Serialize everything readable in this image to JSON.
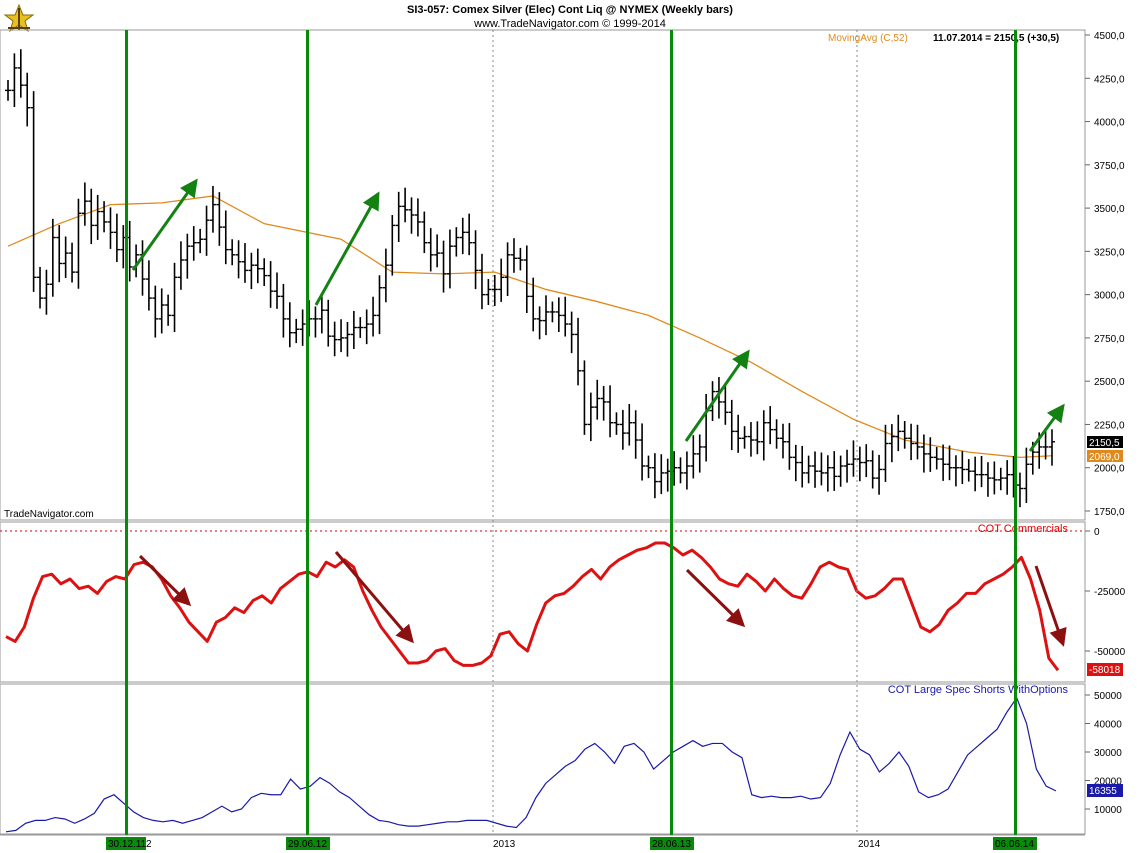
{
  "header": {
    "title": "SI3-057:  Comex Silver (Elec) Cont Liq @ NYMEX  (Weekly bars)",
    "subtitle": "www.TradeNavigator.com © 1999-2014"
  },
  "watermark": "TradeNavigator.com",
  "colors": {
    "price_bars": "#000000",
    "moving_avg": "#e08a1e",
    "cot_commercials": "#dd1111",
    "cot_large_spec": "#1a1aa8",
    "vertical_markers": "#0a8a0a",
    "arrows_up": "#138213",
    "arrows_down": "#8b1010"
  },
  "chart_data": [
    {
      "type": "ohlc",
      "panel": "price",
      "title": "SI3-057:  Comex Silver (Elec) Cont Liq @ NYMEX  (Weekly bars)",
      "ylim": [
        1650,
        4500
      ],
      "yticks": [
        "4500,0",
        "4250,0",
        "4000,0",
        "3750,0",
        "3500,0",
        "3250,0",
        "3000,0",
        "2750,0",
        "2500,0",
        "2250,0",
        "2000,0",
        "1750,0"
      ],
      "ytick_values": [
        4500,
        4250,
        4000,
        3750,
        3500,
        3250,
        3000,
        2750,
        2500,
        2250,
        2000,
        1750
      ],
      "last_value_label": "2150,5",
      "ma_value_label": "2069,0",
      "legend_ma": "MovingAvg (C,52)",
      "legend_value": "11.07.2014 = 2150,5 (+30,5)",
      "closes": [
        4180,
        4310,
        4210,
        4080,
        3100,
        2980,
        3060,
        3330,
        3180,
        3240,
        3130,
        3470,
        3540,
        3400,
        3480,
        3420,
        3360,
        3260,
        3330,
        3160,
        3230,
        3090,
        2980,
        2860,
        2940,
        2880,
        3100,
        3200,
        3280,
        3300,
        3320,
        3430,
        3520,
        3390,
        3260,
        3230,
        3190,
        3140,
        3170,
        3150,
        3110,
        3020,
        2990,
        2860,
        2780,
        2800,
        2830,
        2860,
        2860,
        2910,
        2760,
        2740,
        2750,
        2770,
        2810,
        2810,
        2830,
        2880,
        3040,
        3170,
        3400,
        3510,
        3490,
        3460,
        3420,
        3300,
        3230,
        3240,
        3120,
        3280,
        3330,
        3360,
        3300,
        3140,
        3000,
        3030,
        3030,
        3100,
        3230,
        3210,
        3200,
        2990,
        2860,
        2850,
        2900,
        2900,
        2880,
        2830,
        2770,
        2560,
        2250,
        2350,
        2400,
        2380,
        2260,
        2250,
        2200,
        2260,
        2160,
        2010,
        2000,
        1920,
        1970,
        1980,
        2000,
        1970,
        2010,
        2080,
        2120,
        2330,
        2440,
        2380,
        2320,
        2210,
        2170,
        2180,
        2160,
        2150,
        2260,
        2220,
        2170,
        2150,
        2060,
        2030,
        1970,
        2010,
        1980,
        1970,
        2000,
        1950,
        2010,
        2020,
        2050,
        2030,
        2040,
        1940,
        1990,
        2140,
        2180,
        2210,
        2170,
        2140,
        2120,
        2080,
        2060,
        2050,
        2020,
        2000,
        2000,
        1990,
        1980,
        1960,
        1960,
        1940,
        1930,
        1940,
        1960,
        1900,
        1880,
        2020,
        2090,
        2120,
        2120,
        2150
      ],
      "moving_avg": [
        {
          "i": 0,
          "v": 3280
        },
        {
          "i": 8,
          "v": 3410
        },
        {
          "i": 16,
          "v": 3520
        },
        {
          "i": 24,
          "v": 3530
        },
        {
          "i": 32,
          "v": 3570
        },
        {
          "i": 40,
          "v": 3410
        },
        {
          "i": 52,
          "v": 3320
        },
        {
          "i": 60,
          "v": 3130
        },
        {
          "i": 68,
          "v": 3120
        },
        {
          "i": 76,
          "v": 3130
        },
        {
          "i": 84,
          "v": 3030
        },
        {
          "i": 92,
          "v": 2960
        },
        {
          "i": 100,
          "v": 2880
        },
        {
          "i": 108,
          "v": 2750
        },
        {
          "i": 116,
          "v": 2610
        },
        {
          "i": 124,
          "v": 2440
        },
        {
          "i": 132,
          "v": 2280
        },
        {
          "i": 140,
          "v": 2160
        },
        {
          "i": 150,
          "v": 2090
        },
        {
          "i": 158,
          "v": 2060
        },
        {
          "i": 163,
          "v": 2069
        }
      ]
    },
    {
      "type": "line",
      "panel": "cot_commercials",
      "series_name": "COT Commercials",
      "ylim": [
        -62000,
        2000
      ],
      "yticks": [
        "0",
        "-25000",
        "-50000"
      ],
      "ytick_values": [
        0,
        -25000,
        -50000
      ],
      "last_value_label": "-58018",
      "values": [
        -44000,
        -46000,
        -40000,
        -28000,
        -19000,
        -18000,
        -22000,
        -20000,
        -24000,
        -23000,
        -26000,
        -21000,
        -19000,
        -20000,
        -14000,
        -13000,
        -15000,
        -20000,
        -27000,
        -32000,
        -38000,
        -42000,
        -46000,
        -38000,
        -36000,
        -32000,
        -34000,
        -29000,
        -27000,
        -30000,
        -24000,
        -21000,
        -18000,
        -17000,
        -19000,
        -13000,
        -15000,
        -12000,
        -15000,
        -25000,
        -33000,
        -40000,
        -45000,
        -50000,
        -55000,
        -55000,
        -54000,
        -50000,
        -49000,
        -54000,
        -56000,
        -56000,
        -55000,
        -52000,
        -43000,
        -42000,
        -47000,
        -50000,
        -39000,
        -30000,
        -27000,
        -26000,
        -23000,
        -19000,
        -16000,
        -20000,
        -15000,
        -12000,
        -10000,
        -8000,
        -7000,
        -5000,
        -5000,
        -7000,
        -10000,
        -8000,
        -11000,
        -15000,
        -20000,
        -22000,
        -23000,
        -18000,
        -21000,
        -25000,
        -20000,
        -24000,
        -27000,
        -28000,
        -22000,
        -15000,
        -13000,
        -15000,
        -16000,
        -25000,
        -28000,
        -27000,
        -24000,
        -20000,
        -20000,
        -30000,
        -40000,
        -42000,
        -39000,
        -33000,
        -30000,
        -26000,
        -26000,
        -22000,
        -20000,
        -18000,
        -15000,
        -11000,
        -20000,
        -33000,
        -53000,
        -58018
      ]
    },
    {
      "type": "line",
      "panel": "cot_large_spec",
      "series_name": "COT Large Spec Shorts WithOptions",
      "ylim": [
        0,
        56000
      ],
      "yticks": [
        "50000",
        "40000",
        "30000",
        "20000",
        "10000"
      ],
      "ytick_values": [
        50000,
        40000,
        30000,
        20000,
        10000
      ],
      "last_value_label": "16355",
      "values": [
        2000,
        2500,
        5000,
        6000,
        6000,
        7000,
        6500,
        5000,
        6500,
        8500,
        13500,
        15000,
        12000,
        9000,
        7000,
        6000,
        5500,
        6000,
        5000,
        6000,
        7000,
        9000,
        11000,
        9000,
        10000,
        14000,
        15500,
        15000,
        15000,
        20500,
        17000,
        18000,
        21000,
        19000,
        16000,
        14000,
        11000,
        8000,
        6000,
        5500,
        4500,
        4000,
        4000,
        4500,
        5000,
        5500,
        5500,
        6000,
        6000,
        6000,
        5000,
        4000,
        3500,
        7000,
        14000,
        19000,
        22000,
        25000,
        27000,
        31000,
        33000,
        30000,
        26000,
        32000,
        33000,
        30000,
        24000,
        27000,
        30000,
        32000,
        34000,
        32000,
        33000,
        33000,
        30000,
        28000,
        15000,
        14000,
        14500,
        14000,
        14000,
        14500,
        13500,
        14000,
        19000,
        29000,
        37000,
        31000,
        29000,
        23000,
        26000,
        30000,
        25000,
        16000,
        14000,
        15000,
        17000,
        23000,
        29000,
        32000,
        35000,
        38000,
        44000,
        49000,
        40000,
        24000,
        18000,
        16355
      ]
    }
  ],
  "xaxis": {
    "labels": [
      "30.12.11",
      "2",
      "29.06.12",
      "2013",
      "28.06.13",
      "2014",
      "06.06.14"
    ]
  },
  "annotations": {
    "markers": [
      "30.12.11",
      "29.06.12",
      "28.06.13",
      "06.06.14"
    ]
  }
}
